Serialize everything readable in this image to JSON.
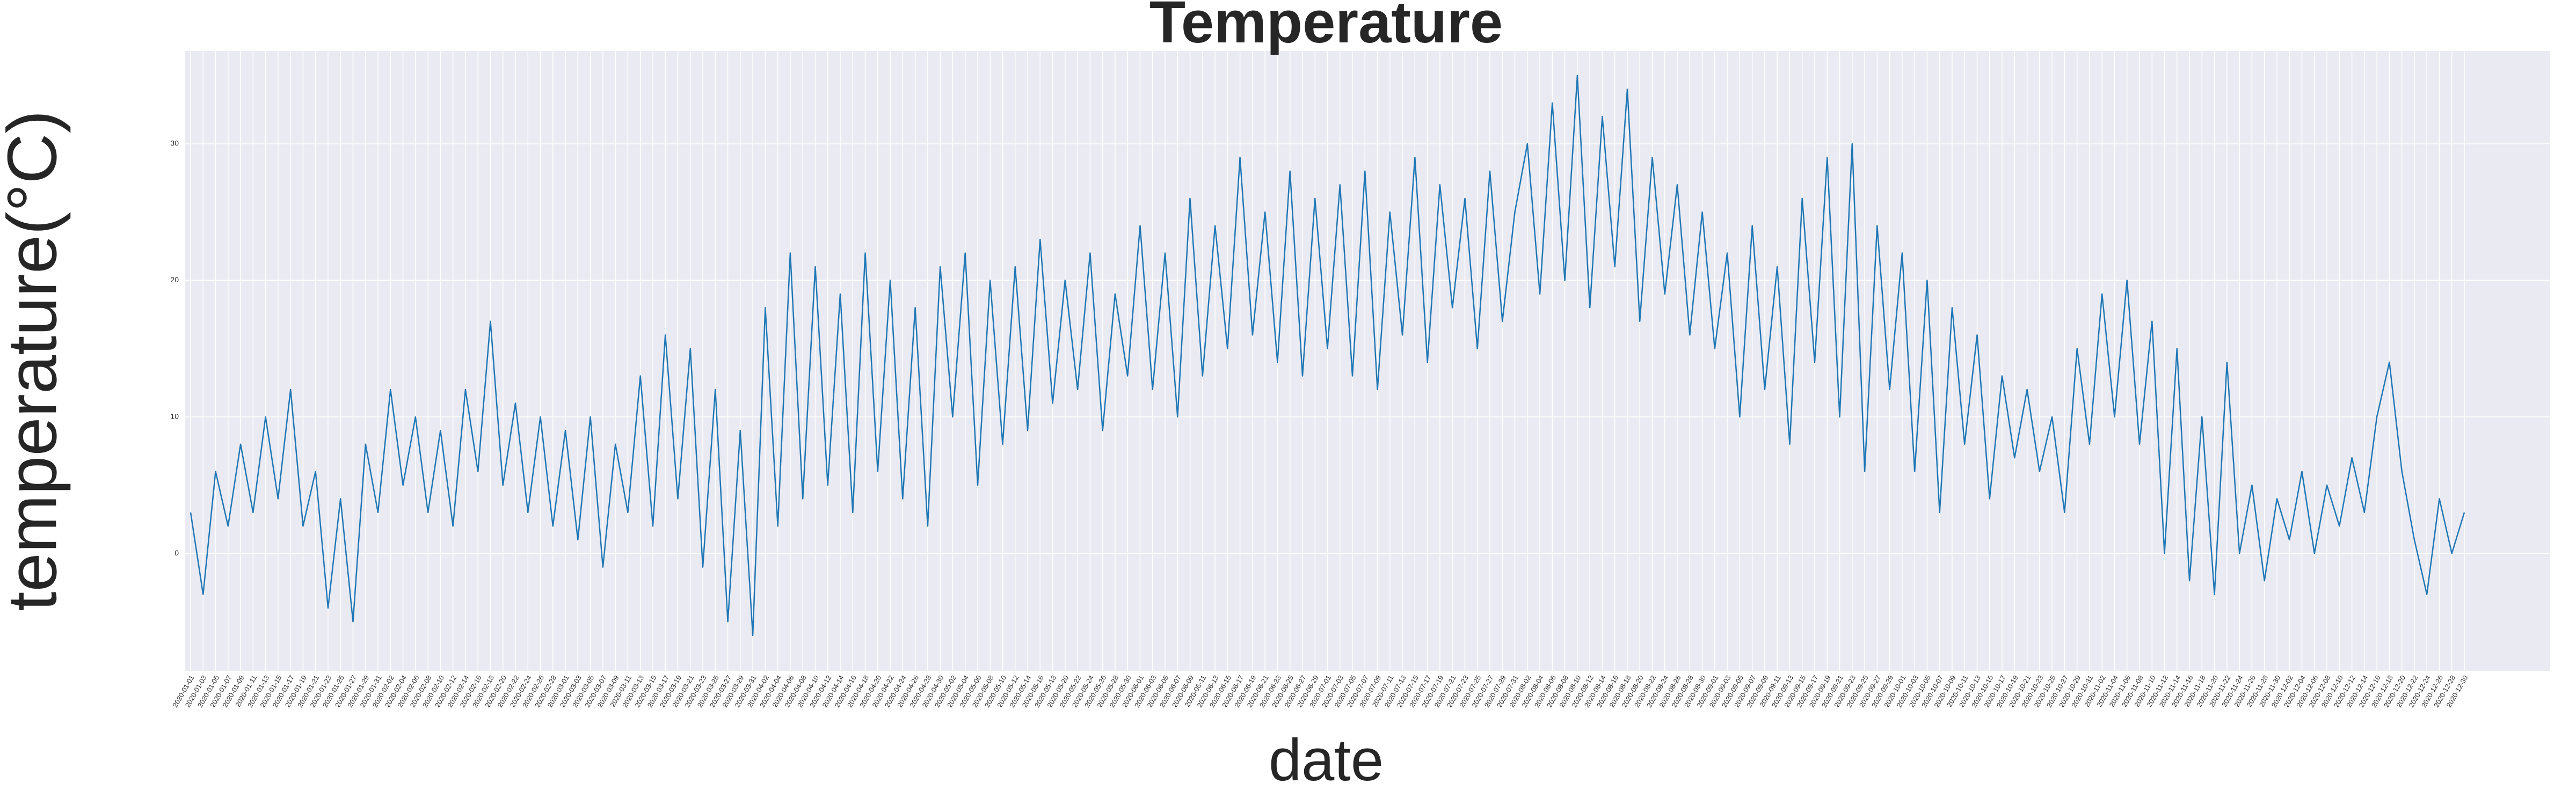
{
  "chart_data": {
    "type": "line",
    "title": "Temperature",
    "x_label": "date",
    "y_label": "temperature(°C)",
    "color": "#1f77b4",
    "grid": true,
    "ylim": [
      -8.6,
      36.8
    ],
    "yticks": [
      0,
      10,
      20,
      30
    ],
    "categories": [
      "2020-01-01",
      "2020-01-03",
      "2020-01-05",
      "2020-01-07",
      "2020-01-09",
      "2020-01-11",
      "2020-01-13",
      "2020-01-15",
      "2020-01-17",
      "2020-01-19",
      "2020-01-21",
      "2020-01-23",
      "2020-01-25",
      "2020-01-27",
      "2020-01-29",
      "2020-01-31",
      "2020-02-02",
      "2020-02-04",
      "2020-02-06",
      "2020-02-08",
      "2020-02-10",
      "2020-02-12",
      "2020-02-14",
      "2020-02-16",
      "2020-02-18",
      "2020-02-20",
      "2020-02-22",
      "2020-02-24",
      "2020-02-26",
      "2020-02-28",
      "2020-03-01",
      "2020-03-03",
      "2020-03-05",
      "2020-03-07",
      "2020-03-09",
      "2020-03-11",
      "2020-03-13",
      "2020-03-15",
      "2020-03-17",
      "2020-03-19",
      "2020-03-21",
      "2020-03-23",
      "2020-03-25",
      "2020-03-27",
      "2020-03-29",
      "2020-03-31",
      "2020-04-02",
      "2020-04-04",
      "2020-04-06",
      "2020-04-08",
      "2020-04-10",
      "2020-04-12",
      "2020-04-14",
      "2020-04-16",
      "2020-04-18",
      "2020-04-20",
      "2020-04-22",
      "2020-04-24",
      "2020-04-26",
      "2020-04-28",
      "2020-04-30",
      "2020-05-02",
      "2020-05-04",
      "2020-05-06",
      "2020-05-08",
      "2020-05-10",
      "2020-05-12",
      "2020-05-14",
      "2020-05-16",
      "2020-05-18",
      "2020-05-20",
      "2020-05-22",
      "2020-05-24",
      "2020-05-26",
      "2020-05-28",
      "2020-05-30",
      "2020-06-01",
      "2020-06-03",
      "2020-06-05",
      "2020-06-07",
      "2020-06-09",
      "2020-06-11",
      "2020-06-13",
      "2020-06-15",
      "2020-06-17",
      "2020-06-19",
      "2020-06-21",
      "2020-06-23",
      "2020-06-25",
      "2020-06-27",
      "2020-06-29",
      "2020-07-01",
      "2020-07-03",
      "2020-07-05",
      "2020-07-07",
      "2020-07-09",
      "2020-07-11",
      "2020-07-13",
      "2020-07-15",
      "2020-07-17",
      "2020-07-19",
      "2020-07-21",
      "2020-07-23",
      "2020-07-25",
      "2020-07-27",
      "2020-07-29",
      "2020-07-31",
      "2020-08-02",
      "2020-08-04",
      "2020-08-06",
      "2020-08-08",
      "2020-08-10",
      "2020-08-12",
      "2020-08-14",
      "2020-08-16",
      "2020-08-18",
      "2020-08-20",
      "2020-08-22",
      "2020-08-24",
      "2020-08-26",
      "2020-08-28",
      "2020-08-30",
      "2020-09-01",
      "2020-09-03",
      "2020-09-05",
      "2020-09-07",
      "2020-09-09",
      "2020-09-11",
      "2020-09-13",
      "2020-09-15",
      "2020-09-17",
      "2020-09-19",
      "2020-09-21",
      "2020-09-23",
      "2020-09-25",
      "2020-09-27",
      "2020-09-29",
      "2020-10-01",
      "2020-10-03",
      "2020-10-05",
      "2020-10-07",
      "2020-10-09",
      "2020-10-11",
      "2020-10-13",
      "2020-10-15",
      "2020-10-17",
      "2020-10-19",
      "2020-10-21",
      "2020-10-23",
      "2020-10-25",
      "2020-10-27",
      "2020-10-29",
      "2020-10-31",
      "2020-11-02",
      "2020-11-04",
      "2020-11-06",
      "2020-11-08",
      "2020-11-10",
      "2020-11-12",
      "2020-11-14",
      "2020-11-16",
      "2020-11-18",
      "2020-11-20",
      "2020-11-22",
      "2020-11-24",
      "2020-11-26",
      "2020-11-28",
      "2020-11-30",
      "2020-12-02",
      "2020-12-04",
      "2020-12-06",
      "2020-12-08",
      "2020-12-10",
      "2020-12-12",
      "2020-12-14",
      "2020-12-16",
      "2020-12-18",
      "2020-12-20",
      "2020-12-22",
      "2020-12-24",
      "2020-12-26",
      "2020-12-28",
      "2020-12-30"
    ],
    "values": [
      3,
      -3,
      6,
      2,
      8,
      3,
      10,
      4,
      12,
      2,
      6,
      -4,
      4,
      -5,
      8,
      3,
      12,
      5,
      10,
      3,
      9,
      2,
      12,
      6,
      17,
      5,
      11,
      3,
      10,
      2,
      9,
      1,
      10,
      -1,
      8,
      3,
      13,
      2,
      16,
      4,
      15,
      -1,
      12,
      -5,
      9,
      -6,
      18,
      2,
      22,
      4,
      21,
      5,
      19,
      3,
      22,
      6,
      20,
      4,
      18,
      2,
      21,
      10,
      22,
      5,
      20,
      8,
      21,
      9,
      23,
      11,
      20,
      12,
      22,
      9,
      19,
      13,
      24,
      12,
      22,
      10,
      26,
      13,
      24,
      15,
      29,
      16,
      25,
      14,
      28,
      13,
      26,
      15,
      27,
      13,
      28,
      12,
      25,
      16,
      29,
      14,
      27,
      18,
      26,
      15,
      28,
      17,
      25,
      30,
      19,
      33,
      20,
      35,
      18,
      32,
      21,
      34,
      17,
      29,
      19,
      27,
      16,
      25,
      15,
      22,
      10,
      24,
      12,
      21,
      8,
      26,
      14,
      29,
      10,
      30,
      6,
      24,
      12,
      22,
      6,
      20,
      3,
      18,
      8,
      16,
      4,
      13,
      7,
      12,
      6,
      10,
      3,
      15,
      8,
      19,
      10,
      20,
      8,
      17,
      0,
      15,
      -2,
      10,
      -3,
      14,
      0,
      5,
      -2,
      4,
      1,
      6,
      0,
      5,
      2,
      7,
      3,
      10,
      14,
      6,
      1,
      -3,
      4,
      0,
      3
    ]
  }
}
